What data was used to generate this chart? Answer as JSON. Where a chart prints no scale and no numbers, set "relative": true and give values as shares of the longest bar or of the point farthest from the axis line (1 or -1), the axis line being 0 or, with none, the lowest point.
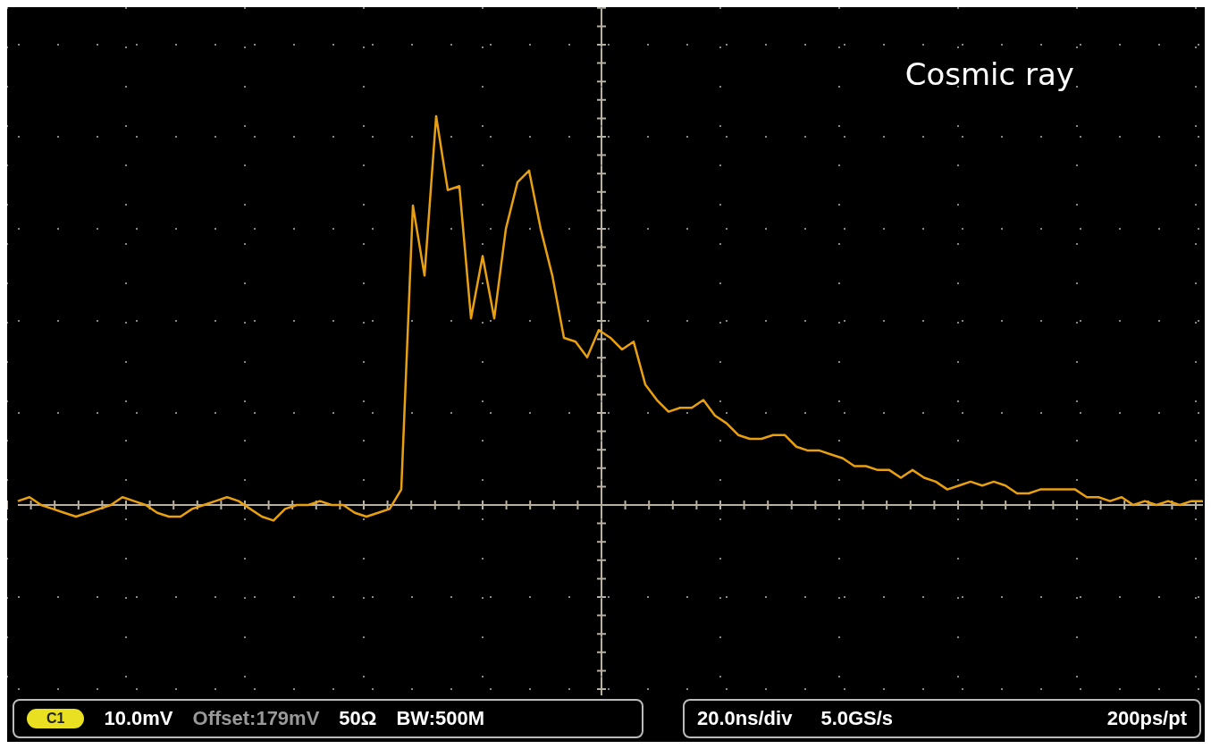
{
  "chart_data": {
    "type": "line",
    "relative": true,
    "grid": true,
    "legend": false,
    "marker": "none",
    "line_style": "solid",
    "categories": [
      null,
      null,
      null,
      null,
      null,
      null,
      null,
      null,
      null,
      null,
      null,
      null,
      null,
      null,
      null,
      null,
      null,
      null,
      null,
      null,
      null,
      null,
      null,
      null,
      null,
      null,
      null,
      null,
      null,
      null,
      null,
      null,
      null,
      null,
      null,
      null,
      null,
      null,
      null,
      null,
      null,
      null,
      null,
      null,
      null,
      null,
      null,
      null,
      null,
      null,
      null,
      null,
      null,
      null,
      null,
      null,
      null,
      null,
      null,
      null,
      null,
      null,
      null,
      null,
      null,
      null,
      null,
      null,
      null,
      null,
      null,
      null,
      null,
      null,
      null,
      null,
      null,
      null,
      null,
      null,
      null,
      null,
      null,
      null,
      null,
      null,
      null,
      null,
      null,
      null,
      null,
      null,
      null,
      null,
      null,
      null,
      null,
      null,
      null,
      null,
      null,
      null,
      null
    ],
    "series": [
      {
        "color": "#e8a010",
        "values": [
          0.01,
          0.02,
          0,
          -0.01,
          -0.02,
          -0.03,
          -0.02,
          -0.01,
          0,
          0.02,
          0.01,
          0,
          -0.02,
          -0.03,
          -0.03,
          -0.01,
          0,
          0.01,
          0.02,
          0.01,
          -0.01,
          -0.03,
          -0.04,
          -0.01,
          0,
          0,
          0.01,
          0,
          0,
          -0.02,
          -0.03,
          -0.02,
          -0.01,
          0.04,
          0.77,
          0.59,
          1,
          0.81,
          0.82,
          0.48,
          0.64,
          0.48,
          0.71,
          0.83,
          0.86,
          0.71,
          0.59,
          0.43,
          0.42,
          0.38,
          0.45,
          0.43,
          0.4,
          0.42,
          0.31,
          0.27,
          0.24,
          0.25,
          0.25,
          0.27,
          0.23,
          0.21,
          0.18,
          0.17,
          0.17,
          0.18,
          0.18,
          0.15,
          0.14,
          0.14,
          0.13,
          0.12,
          0.1,
          0.1,
          0.09,
          0.09,
          0.07,
          0.09,
          0.07,
          0.06,
          0.04,
          0.05,
          0.06,
          0.05,
          0.06,
          0.05,
          0.03,
          0.03,
          0.04,
          0.04,
          0.04,
          0.04,
          0.02,
          0.02,
          0.01,
          0.02,
          0,
          0.01,
          0,
          0.01,
          0,
          0.01,
          0.01
        ]
      }
    ],
    "ref_lines": [
      {
        "axis": "y",
        "value": 0,
        "color": "#b8b0a0"
      }
    ],
    "annotations": [
      "Cosmic ray",
      "C1",
      "10.0mV",
      "Offset:179mV",
      "50Ω",
      "BW:500M",
      "20.0ns/div",
      "5.0GS/s",
      "200ps/pt"
    ]
  }
}
